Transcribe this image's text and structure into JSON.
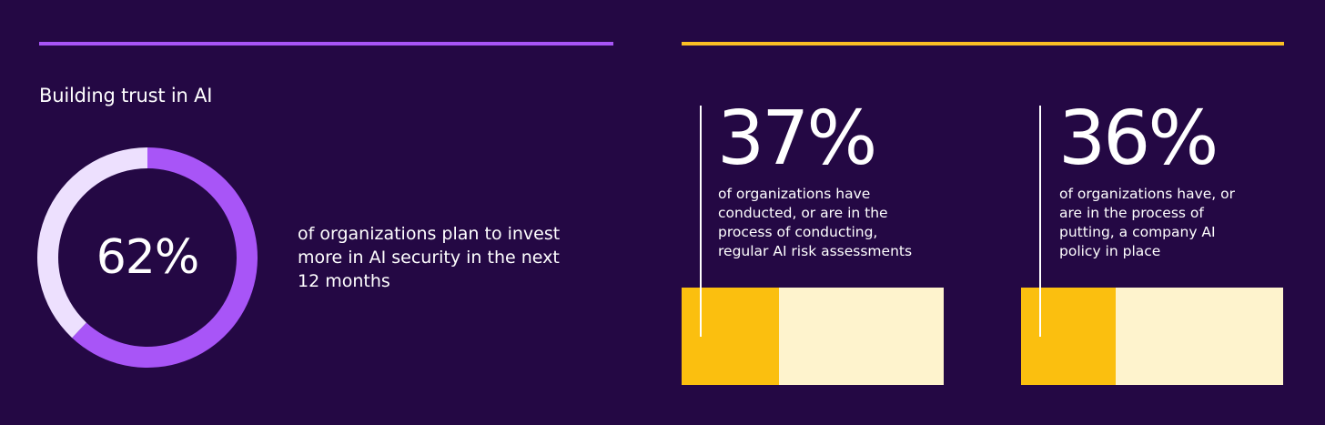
{
  "colors": {
    "background": "#240844",
    "purple_accent": "#a855f7",
    "purple_light": "#ede0fe",
    "yellow_accent": "#fbbf0f",
    "yellow_light": "#fef3cd"
  },
  "left": {
    "title": "Building trust in AI",
    "caption": "of organizations plan to invest more in AI security in the next 12 months"
  },
  "stats": [
    {
      "value_label": "37%",
      "text": "of organizations have conducted, or are in the process of conducting, regular AI risk assessments"
    },
    {
      "value_label": "36%",
      "text": "of organizations have, or are in the process of putting, a company AI policy in place"
    }
  ],
  "chart_data": [
    {
      "type": "pie",
      "value_label": "62%",
      "values": [
        62,
        38
      ],
      "colors": [
        "#a855f7",
        "#ede0fe"
      ]
    },
    {
      "type": "bar",
      "value_label": "37%",
      "values": [
        37
      ],
      "range": [
        0,
        100
      ],
      "colors": [
        "#fbbf0f",
        "#fef3cd"
      ]
    },
    {
      "type": "bar",
      "value_label": "36%",
      "values": [
        36
      ],
      "range": [
        0,
        100
      ],
      "colors": [
        "#fbbf0f",
        "#fef3cd"
      ]
    }
  ]
}
